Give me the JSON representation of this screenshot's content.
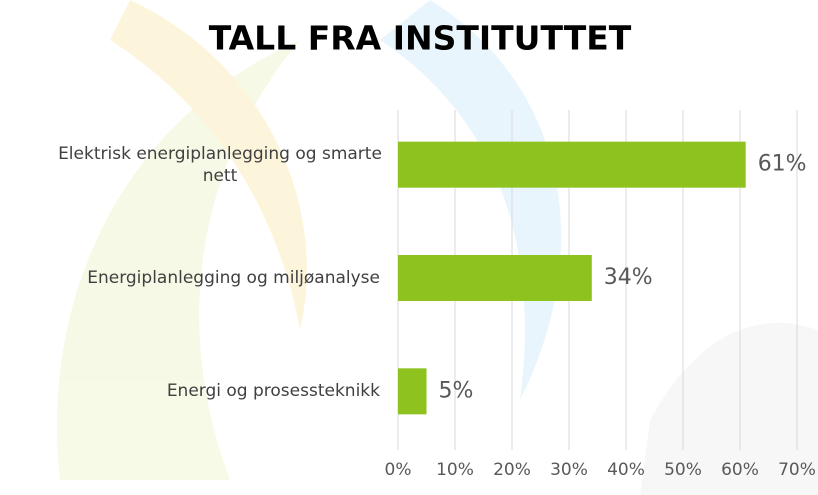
{
  "chart_data": {
    "type": "bar",
    "orientation": "horizontal",
    "title": "TALL FRA INSTITUTTET",
    "categories": [
      "Elektrisk energiplanlegging og smarte nett",
      "Energiplanlegging og miljøanalyse",
      "Energi og prosessteknikk"
    ],
    "values": [
      61,
      34,
      5
    ],
    "value_labels": [
      "61%",
      "34%",
      "5%"
    ],
    "color": "#8dc21f",
    "xlim": [
      0,
      70
    ],
    "xticks": [
      {
        "value": 0,
        "label": "0%"
      },
      {
        "value": 10,
        "label": "10%"
      },
      {
        "value": 20,
        "label": "20%"
      },
      {
        "value": 30,
        "label": "30%"
      },
      {
        "value": 40,
        "label": "40%"
      },
      {
        "value": 50,
        "label": "50%"
      },
      {
        "value": 60,
        "label": "60%"
      },
      {
        "value": 70,
        "label": "70%"
      }
    ],
    "grid": true
  }
}
